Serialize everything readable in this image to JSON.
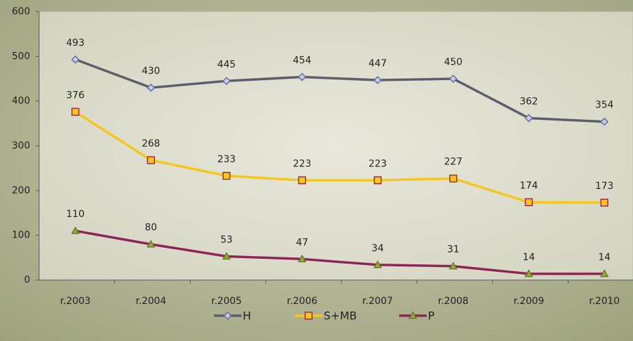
{
  "chart_data": {
    "type": "line",
    "categories": [
      "r.2003",
      "r.2004",
      "r.2005",
      "r.2006",
      "r.2007",
      "r.2008",
      "r.2009",
      "r.2010"
    ],
    "series": [
      {
        "name": "H",
        "color": "#5e5e6a",
        "marker": "diamond",
        "marker_fill": "#c3cdf0",
        "marker_stroke": "#6b6b9e",
        "values": [
          493,
          430,
          445,
          454,
          447,
          450,
          362,
          354
        ]
      },
      {
        "name": "S+MB",
        "color": "#f4c71a",
        "marker": "square",
        "marker_fill": "#f4c71a",
        "marker_stroke": "#a3264c",
        "values": [
          376,
          268,
          233,
          223,
          223,
          227,
          174,
          173
        ]
      },
      {
        "name": "P",
        "color": "#8e2456",
        "marker": "triangle",
        "marker_fill": "#93ad3c",
        "marker_stroke": "#6b7a22",
        "values": [
          110,
          80,
          53,
          47,
          34,
          31,
          14,
          14
        ]
      }
    ],
    "ylim": [
      0,
      600
    ],
    "yticks": [
      0,
      100,
      200,
      300,
      400,
      500,
      600
    ],
    "legend": "bottom"
  }
}
